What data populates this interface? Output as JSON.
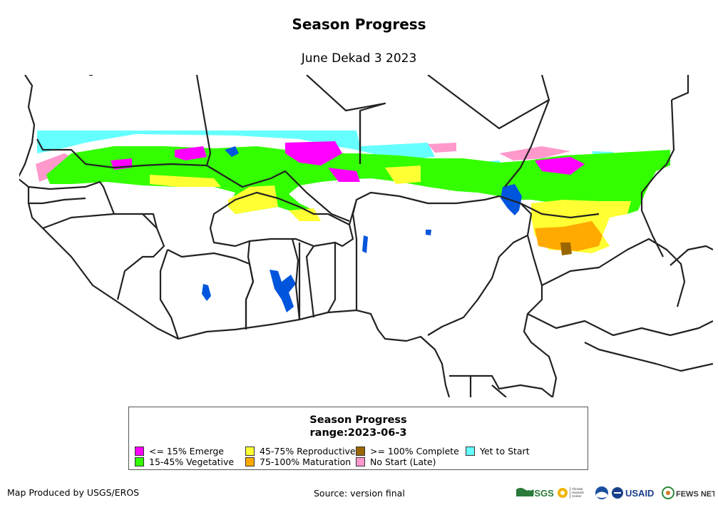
{
  "header": {
    "title": "Season Progress",
    "subtitle": "June Dekad 3 2023"
  },
  "legend": {
    "title": "Season Progress",
    "range": "range:2023-06-3",
    "items": [
      {
        "label": "<= 15% Emerge",
        "color": "#ff00ff"
      },
      {
        "label": "15-45% Vegetative",
        "color": "#33ff00"
      },
      {
        "label": "45-75% Reproductive",
        "color": "#ffff33"
      },
      {
        "label": "75-100% Maturation",
        "color": "#ffaa00"
      },
      {
        "label": ">= 100% Complete",
        "color": "#996600"
      },
      {
        "label": "No Start (Late)",
        "color": "#ff99cc"
      },
      {
        "label": "Yet to Start",
        "color": "#66ffff"
      }
    ]
  },
  "colors": {
    "water": "#0055dd",
    "border": "#222222",
    "background": "#ffffff"
  },
  "footer": {
    "produced_by": "Map Produced by USGS/EROS",
    "source": "Source: version final"
  },
  "logos": {
    "usgs": "USGS",
    "climate_hazards": "Climate Hazards Center",
    "usaid": "USAID",
    "fewsnet": "FEWS NET"
  }
}
